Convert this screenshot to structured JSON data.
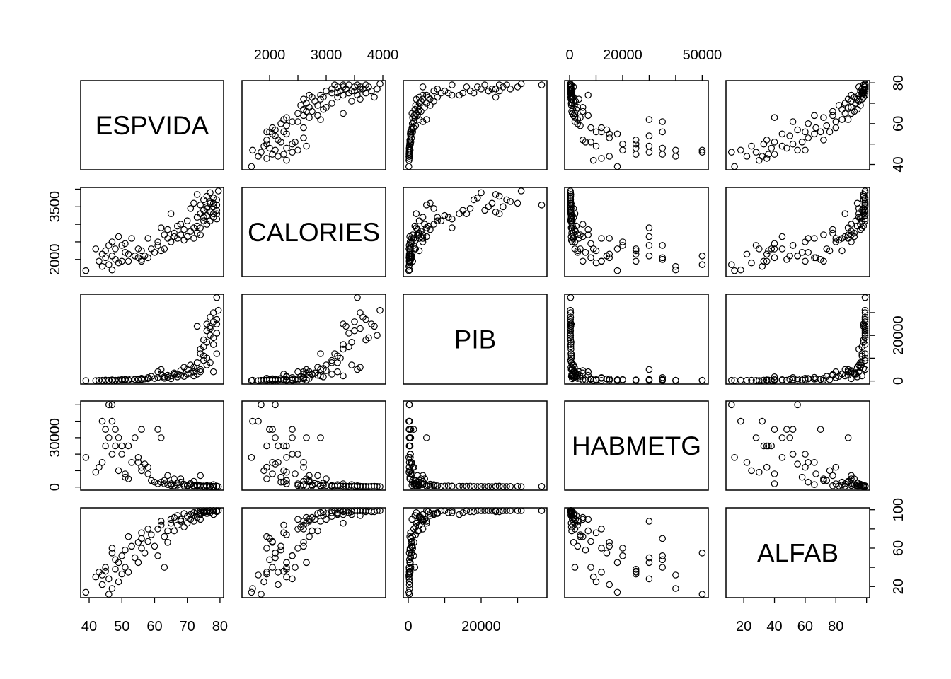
{
  "chart_data": {
    "type": "scatter",
    "subtype": "scatterplot-matrix",
    "variables": [
      {
        "name": "ESPVIDA",
        "lim": [
          37.4,
          81.1
        ],
        "ticks": [
          40,
          50,
          60,
          70,
          80
        ],
        "x_labels": [
          "40",
          "50",
          "60",
          "70",
          "80"
        ],
        "y_labels": [
          "40",
          "60",
          "80"
        ]
      },
      {
        "name": "CALORIES",
        "lim": [
          1512,
          4050
        ],
        "ticks": [
          2000,
          2500,
          3000,
          3500,
          4000
        ],
        "x_labels": [
          "2000",
          "3000",
          "4000"
        ],
        "y_labels": [
          "2000",
          "3500"
        ]
      },
      {
        "name": "PIB",
        "lim": [
          -1360,
          38060
        ],
        "ticks": [
          0,
          10000,
          20000,
          30000
        ],
        "x_labels": [
          "0",
          "20000"
        ],
        "y_labels": [
          "0",
          "20000"
        ]
      },
      {
        "name": "HABMETG",
        "lim": [
          -1870,
          52300
        ],
        "ticks": [
          0,
          10000,
          20000,
          30000,
          40000,
          50000
        ],
        "x_labels": [
          "0",
          "20000",
          "50000"
        ],
        "y_labels": [
          "0",
          "30000"
        ]
      },
      {
        "name": "ALFAB",
        "lim": [
          8.4,
          102
        ],
        "ticks": [
          20,
          40,
          60,
          80,
          100
        ],
        "x_labels": [
          "20",
          "40",
          "60",
          "80"
        ],
        "y_labels": [
          "20",
          "60",
          "100"
        ]
      }
    ],
    "observations": [
      [
        39,
        1680,
        150,
        18000,
        14
      ],
      [
        42,
        2300,
        200,
        9000,
        30
      ],
      [
        43,
        1950,
        250,
        12000,
        35
      ],
      [
        44,
        2150,
        300,
        15000,
        22
      ],
      [
        44,
        1800,
        180,
        40000,
        32
      ],
      [
        45,
        2250,
        400,
        25000,
        36
      ],
      [
        45,
        2050,
        220,
        35000,
        40
      ],
      [
        46,
        1850,
        300,
        50000,
        12
      ],
      [
        46,
        2400,
        250,
        30000,
        28
      ],
      [
        47,
        2100,
        280,
        50000,
        55
      ],
      [
        47,
        1700,
        350,
        40000,
        18
      ],
      [
        47,
        2500,
        500,
        20000,
        60
      ],
      [
        48,
        2000,
        320,
        35000,
        48
      ],
      [
        48,
        2300,
        260,
        25000,
        38
      ],
      [
        49,
        2650,
        400,
        30000,
        45
      ],
      [
        49,
        1900,
        310,
        10000,
        25
      ],
      [
        50,
        2400,
        600,
        20000,
        52
      ],
      [
        50,
        1950,
        380,
        25000,
        33
      ],
      [
        51,
        2200,
        450,
        6000,
        58
      ],
      [
        51,
        2450,
        700,
        8000,
        40
      ],
      [
        52,
        2150,
        500,
        25000,
        35
      ],
      [
        52,
        1950,
        420,
        5000,
        72
      ],
      [
        53,
        2600,
        900,
        15000,
        62
      ],
      [
        54,
        2100,
        650,
        30000,
        50
      ],
      [
        55,
        2050,
        800,
        15000,
        66
      ],
      [
        55,
        2300,
        550,
        18000,
        45
      ],
      [
        56,
        2000,
        700,
        35000,
        70
      ],
      [
        56,
        2250,
        600,
        10000,
        76
      ],
      [
        56,
        1950,
        1200,
        12000,
        60
      ],
      [
        57,
        2100,
        900,
        14000,
        55
      ],
      [
        58,
        2600,
        1500,
        12000,
        80
      ],
      [
        58,
        2050,
        1000,
        8000,
        67
      ],
      [
        59,
        2300,
        2000,
        4000,
        74
      ],
      [
        60,
        2200,
        1100,
        3000,
        62
      ],
      [
        61,
        2400,
        1500,
        35000,
        52
      ],
      [
        61,
        2500,
        4000,
        2000,
        80
      ],
      [
        62,
        2250,
        3000,
        3000,
        84
      ],
      [
        62,
        2900,
        5000,
        30000,
        88
      ],
      [
        63,
        2700,
        1200,
        4000,
        72
      ],
      [
        63,
        2300,
        1800,
        2000,
        40
      ],
      [
        64,
        2850,
        2500,
        7000,
        78
      ],
      [
        64,
        2600,
        1600,
        1500,
        66
      ],
      [
        65,
        3300,
        2200,
        2000,
        86
      ],
      [
        65,
        2500,
        1000,
        1000,
        90
      ],
      [
        66,
        2650,
        3500,
        5000,
        92
      ],
      [
        66,
        2750,
        2800,
        800,
        78
      ],
      [
        67,
        2950,
        1800,
        2500,
        94
      ],
      [
        67,
        2600,
        3000,
        1200,
        84
      ],
      [
        68,
        2700,
        2500,
        3000,
        88
      ],
      [
        68,
        3000,
        4500,
        5000,
        90
      ],
      [
        69,
        2550,
        2000,
        700,
        82
      ],
      [
        69,
        2850,
        6000,
        1800,
        96
      ],
      [
        70,
        3100,
        3000,
        1000,
        93
      ],
      [
        70,
        2650,
        5000,
        600,
        86
      ],
      [
        71,
        2800,
        3500,
        2200,
        90
      ],
      [
        71,
        3450,
        7000,
        1500,
        95
      ],
      [
        72,
        2900,
        2200,
        900,
        97
      ],
      [
        72,
        2600,
        4000,
        3500,
        88
      ],
      [
        72,
        3600,
        6000,
        500,
        94
      ],
      [
        73,
        2950,
        5500,
        1100,
        98
      ],
      [
        73,
        3200,
        8000,
        700,
        96
      ],
      [
        73,
        2750,
        3000,
        1400,
        92
      ],
      [
        74,
        2900,
        12000,
        600,
        97
      ],
      [
        74,
        3550,
        5000,
        800,
        99
      ],
      [
        74,
        2700,
        4000,
        7000,
        90
      ],
      [
        74,
        3300,
        14000,
        500,
        95
      ],
      [
        75,
        3100,
        9000,
        400,
        99
      ],
      [
        75,
        3400,
        15000,
        450,
        97
      ],
      [
        75,
        3700,
        18000,
        380,
        98
      ],
      [
        76,
        3250,
        10000,
        600,
        99
      ],
      [
        76,
        3500,
        22000,
        350,
        99
      ],
      [
        76,
        3800,
        25000,
        400,
        98
      ],
      [
        76,
        3000,
        7000,
        900,
        96
      ],
      [
        77,
        3600,
        23000,
        300,
        99
      ],
      [
        77,
        3350,
        24000,
        420,
        99
      ],
      [
        77,
        3900,
        20000,
        350,
        99
      ],
      [
        77,
        3100,
        8000,
        700,
        97
      ],
      [
        77,
        3650,
        28000,
        380,
        99
      ],
      [
        78,
        3500,
        26000,
        300,
        99
      ],
      [
        78,
        3300,
        16000,
        450,
        99
      ],
      [
        78,
        3750,
        19000,
        320,
        99
      ],
      [
        78,
        3200,
        4000,
        1500,
        95
      ],
      [
        78,
        3600,
        30000,
        400,
        99
      ],
      [
        79,
        3400,
        21000,
        280,
        99
      ],
      [
        79,
        3700,
        27000,
        330,
        99
      ],
      [
        79,
        3550,
        36600,
        360,
        99
      ],
      [
        79,
        3300,
        25000,
        600,
        98
      ],
      [
        79.5,
        3950,
        31000,
        300,
        99
      ],
      [
        79,
        3150,
        12000,
        500,
        99
      ],
      [
        76,
        3450,
        17000,
        550,
        98
      ],
      [
        75,
        3200,
        11000,
        650,
        97
      ],
      [
        73,
        3850,
        24000,
        450,
        98
      ]
    ]
  }
}
